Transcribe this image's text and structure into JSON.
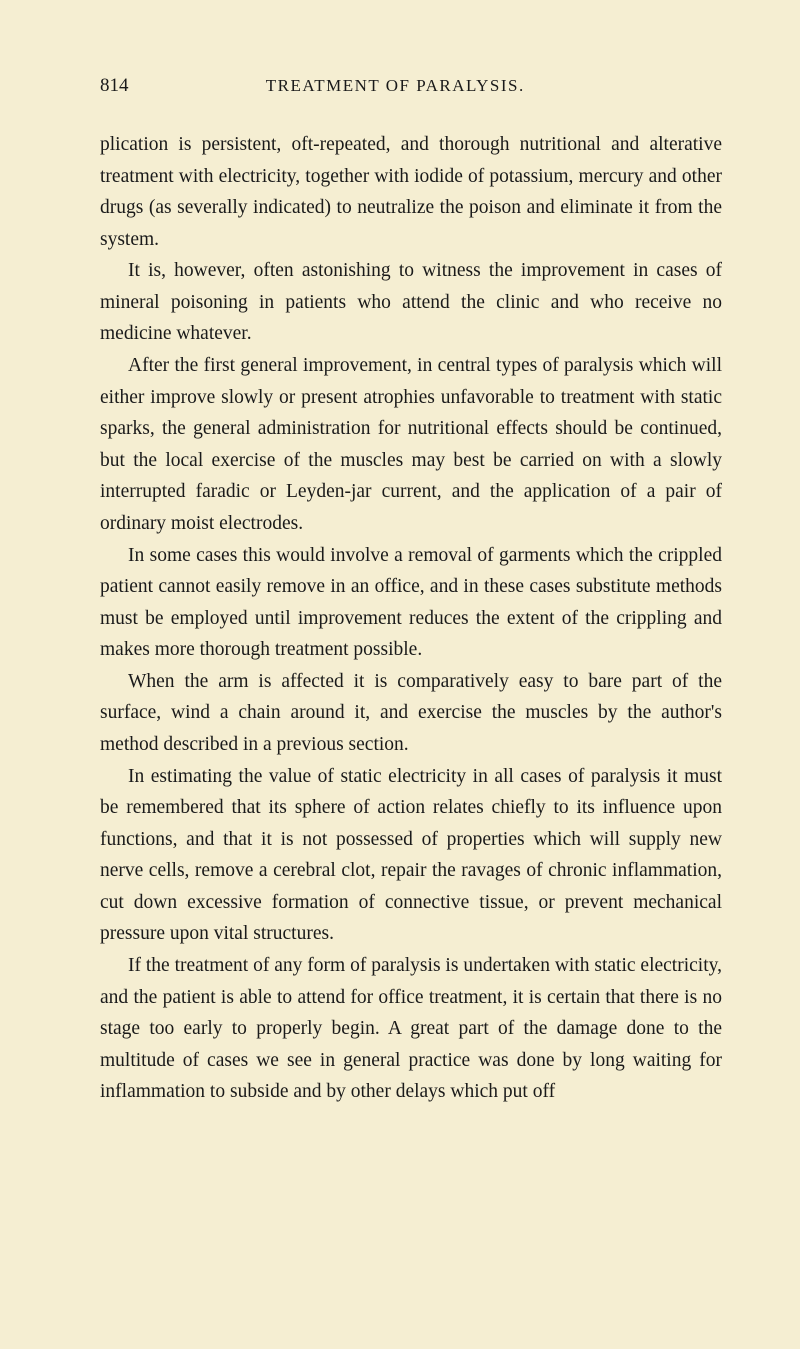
{
  "page_number": "814",
  "chapter_title": "TREATMENT OF PARALYSIS.",
  "paragraphs": [
    "plication is persistent, oft-repeated, and thorough nutritional and alterative treatment with electricity, together with iodide of potassium, mercury and other drugs (as severally indicated) to neutralize the poison and eliminate it from the system.",
    "It is, however, often astonishing to witness the improvement in cases of mineral poisoning in patients who attend the clinic and who receive no medicine whatever.",
    "After the first general improvement, in central types of paralysis which will either improve slowly or present atrophies unfavorable to treatment with static sparks, the general administration for nutritional effects should be continued, but the local exercise of the muscles may best be carried on with a slowly interrupted faradic or Leyden-jar current, and the application of a pair of ordinary moist electrodes.",
    "In some cases this would involve a removal of garments which the crippled patient cannot easily remove in an office, and in these cases substitute methods must be employed until improvement reduces the extent of the crippling and makes more thorough treatment possible.",
    "When the arm is affected it is comparatively easy to bare part of the surface, wind a chain around it, and exercise the muscles by the author's method described in a previous section.",
    "In estimating the value of static electricity in all cases of paralysis it must be remembered that its sphere of action relates chiefly to its influence upon functions, and that it is not possessed of properties which will supply new nerve cells, remove a cerebral clot, repair the ravages of chronic inflammation, cut down excessive formation of connective tissue, or prevent mechanical pressure upon vital structures.",
    "If the treatment of any form of paralysis is undertaken with static electricity, and the patient is able to attend for office treatment, it is certain that there is no stage too early to properly begin. A great part of the damage done to the multitude of cases we see in general practice was done by long waiting for inflammation to subside and by other delays which put off"
  ]
}
